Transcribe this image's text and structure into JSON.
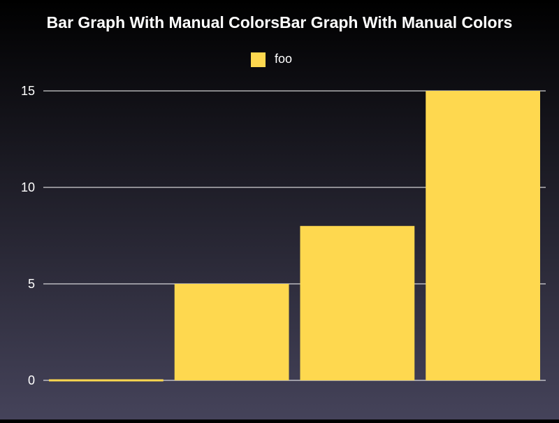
{
  "chart_data": {
    "type": "bar",
    "title": "Bar Graph With Manual ColorsBar Graph With Manual Colors",
    "categories": [
      "",
      "",
      "",
      ""
    ],
    "series": [
      {
        "name": "foo",
        "values": [
          0,
          5,
          8,
          15
        ]
      }
    ],
    "ylim": [
      0,
      15
    ],
    "yticks": [
      0,
      5,
      10,
      15
    ],
    "xlabel": "",
    "ylabel": "",
    "grid": true,
    "legend_position": "top-center"
  },
  "colors": {
    "bar": "#fed84f",
    "text": "#ffffff",
    "grid": "#ffffff",
    "background_top": "#000000",
    "background_bottom": "#45435a"
  }
}
